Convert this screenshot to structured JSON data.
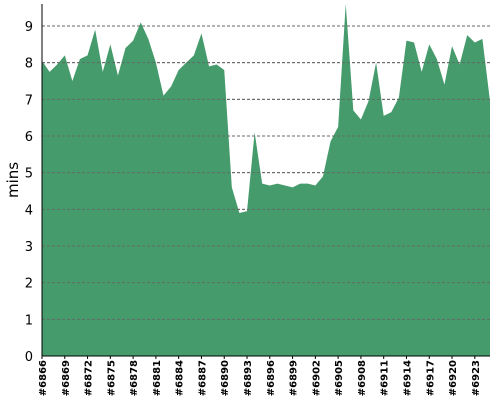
{
  "chart_data": {
    "type": "area",
    "title": "",
    "xlabel": "",
    "ylabel": "mins",
    "ylim": [
      0,
      9.6
    ],
    "yticks": [
      0,
      1,
      2,
      3,
      4,
      5,
      6,
      7,
      8,
      9
    ],
    "grid": true,
    "fill_color": "#459b6b",
    "grid_color": "#666666",
    "series": [
      {
        "values": [
          8.05,
          7.75,
          7.95,
          8.2,
          7.5,
          8.1,
          8.2,
          8.9,
          7.75,
          8.5,
          7.65,
          8.4,
          8.6,
          9.1,
          8.65,
          8.0,
          7.1,
          7.35,
          7.8,
          8.0,
          8.2,
          8.8,
          7.9,
          7.95,
          7.8,
          4.6,
          3.9,
          3.95,
          6.1,
          4.7,
          4.65,
          4.7,
          4.65,
          4.6,
          4.7,
          4.7,
          4.65,
          4.9,
          5.85,
          6.25,
          9.6,
          6.7,
          6.45,
          6.95,
          8.0,
          6.55,
          6.65,
          7.05,
          8.6,
          8.55,
          7.75,
          8.5,
          8.1,
          7.4,
          8.45,
          7.95,
          8.75,
          8.55,
          8.65,
          6.95
        ]
      }
    ],
    "x_first": 6866,
    "x_last": 6925,
    "x_label_every": 3,
    "x_label_prefix": "#"
  }
}
